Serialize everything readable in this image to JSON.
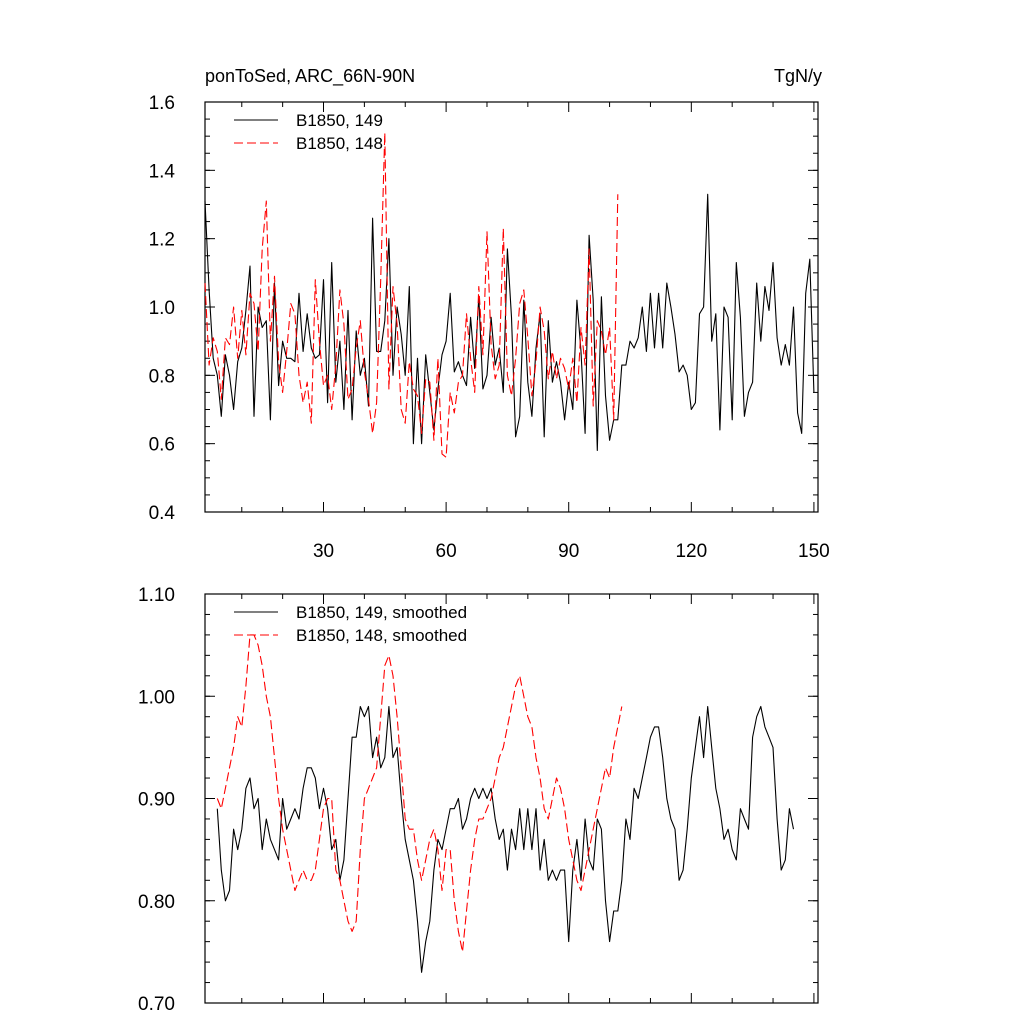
{
  "chart_data": [
    {
      "type": "line",
      "title_left": "ponToSed, ARC_66N-90N",
      "title_right": "TgN/y",
      "xlabel": "",
      "ylabel": "",
      "xlim": [
        1,
        151
      ],
      "ylim": [
        0.4,
        1.6
      ],
      "x_ticks": [
        30,
        60,
        90,
        120,
        150
      ],
      "y_ticks": [
        "0.4",
        "0.6",
        "0.8",
        "1.0",
        "1.2",
        "1.4",
        "1.6"
      ],
      "legend": "top-left",
      "grid": false,
      "series": [
        {
          "name": "B1850, 149",
          "color": "#000000",
          "dash": "solid",
          "x_start": 1,
          "values": [
            1.31,
            1.05,
            0.85,
            0.8,
            0.68,
            0.86,
            0.8,
            0.7,
            0.84,
            0.88,
            0.99,
            1.12,
            0.68,
            1.0,
            0.94,
            0.96,
            0.67,
            1.07,
            0.77,
            0.9,
            0.85,
            0.85,
            0.84,
            1.04,
            0.87,
            0.98,
            0.88,
            0.85,
            0.86,
            1.08,
            0.72,
            1.13,
            0.78,
            0.9,
            0.7,
            0.99,
            0.67,
            0.93,
            0.8,
            0.85,
            0.71,
            1.26,
            0.87,
            0.87,
            0.96,
            1.2,
            0.8,
            1.0,
            0.92,
            0.8,
            1.06,
            0.6,
            0.85,
            0.6,
            0.86,
            0.75,
            0.64,
            0.76,
            0.86,
            0.9,
            1.04,
            0.81,
            0.84,
            0.8,
            0.77,
            0.97,
            0.82,
            1.03,
            0.76,
            0.8,
            0.97,
            0.83,
            0.88,
            0.75,
            1.17,
            0.97,
            0.62,
            0.68,
            1.02,
            0.78,
            0.68,
            0.88,
            0.98,
            0.62,
            0.96,
            0.78,
            0.84,
            0.78,
            0.67,
            0.78,
            0.7,
            1.02,
            0.87,
            0.63,
            1.21,
            1.02,
            0.58,
            1.03,
            0.74,
            0.61,
            0.67,
            0.67,
            0.83,
            0.83,
            0.9,
            0.88,
            0.91,
            1.0,
            0.87,
            1.04,
            0.88,
            1.04,
            0.88,
            1.07,
            1.0,
            0.92,
            0.81,
            0.83,
            0.8,
            0.7,
            0.72,
            0.98,
            1.0,
            1.33,
            0.9,
            0.98,
            0.64,
            1.0,
            0.97,
            0.67,
            1.13,
            0.97,
            0.68,
            0.75,
            0.78,
            1.07,
            0.9,
            1.06,
            0.99,
            1.13,
            0.91,
            0.83,
            0.89,
            0.83,
            1.0,
            0.69,
            0.63,
            1.04,
            1.14,
            0.75
          ]
        },
        {
          "name": "B1850, 148",
          "color": "#ff0000",
          "dash": "dashed",
          "x_start": 1,
          "values": [
            1.07,
            0.83,
            0.91,
            0.87,
            0.73,
            0.91,
            0.89,
            1.0,
            0.85,
            0.99,
            0.86,
            1.04,
            1.01,
            0.87,
            1.17,
            1.31,
            0.9,
            1.09,
            0.84,
            0.75,
            0.87,
            1.01,
            0.98,
            0.8,
            0.72,
            0.78,
            0.66,
            1.08,
            0.9,
            0.77,
            0.8,
            0.7,
            0.83,
            1.05,
            0.95,
            0.73,
            0.76,
            0.88,
            0.96,
            0.81,
            0.73,
            0.63,
            0.72,
            1.08,
            1.51,
            0.76,
            1.06,
            0.95,
            0.7,
            0.66,
            0.84,
            0.76,
            0.74,
            0.63,
            0.79,
            0.78,
            0.61,
            0.85,
            0.57,
            0.56,
            0.75,
            0.69,
            0.78,
            0.8,
            0.98,
            0.85,
            0.75,
            1.06,
            0.86,
            1.22,
            0.89,
            0.79,
            0.83,
            1.23,
            0.8,
            0.74,
            0.85,
            1.01,
            1.05,
            0.91,
            0.74,
            0.84,
            1.0,
            0.93,
            0.79,
            0.87,
            0.79,
            0.85,
            0.82,
            0.76,
            0.85,
            0.72,
            0.94,
            0.83,
            1.17,
            0.71,
            0.96,
            0.93,
            0.86,
            0.94,
            0.67,
            1.33
          ]
        }
      ]
    },
    {
      "type": "line",
      "xlabel": "",
      "ylabel": "",
      "xlim": [
        1,
        151
      ],
      "ylim": [
        0.7,
        1.1
      ],
      "y_ticks": [
        "0.70",
        "0.80",
        "0.90",
        "1.00",
        "1.10"
      ],
      "legend": "top-left",
      "grid": false,
      "series": [
        {
          "name": "B1850, 149, smoothed",
          "color": "#000000",
          "dash": "solid",
          "x_start": 4,
          "values": [
            0.89,
            0.83,
            0.8,
            0.81,
            0.87,
            0.85,
            0.87,
            0.91,
            0.92,
            0.89,
            0.9,
            0.85,
            0.88,
            0.86,
            0.85,
            0.84,
            0.9,
            0.87,
            0.88,
            0.89,
            0.88,
            0.91,
            0.93,
            0.93,
            0.92,
            0.89,
            0.91,
            0.89,
            0.85,
            0.86,
            0.82,
            0.84,
            0.9,
            0.96,
            0.96,
            0.99,
            0.98,
            0.99,
            0.94,
            0.96,
            0.93,
            0.94,
            0.99,
            0.94,
            0.95,
            0.9,
            0.86,
            0.84,
            0.82,
            0.78,
            0.73,
            0.76,
            0.78,
            0.83,
            0.86,
            0.85,
            0.87,
            0.89,
            0.89,
            0.9,
            0.87,
            0.88,
            0.9,
            0.91,
            0.9,
            0.91,
            0.9,
            0.91,
            0.88,
            0.86,
            0.87,
            0.83,
            0.87,
            0.85,
            0.89,
            0.85,
            0.89,
            0.85,
            0.89,
            0.83,
            0.86,
            0.82,
            0.83,
            0.82,
            0.83,
            0.83,
            0.76,
            0.83,
            0.86,
            0.82,
            0.88,
            0.84,
            0.83,
            0.88,
            0.87,
            0.8,
            0.76,
            0.79,
            0.79,
            0.82,
            0.88,
            0.86,
            0.91,
            0.9,
            0.92,
            0.94,
            0.96,
            0.97,
            0.97,
            0.94,
            0.9,
            0.88,
            0.87,
            0.82,
            0.83,
            0.87,
            0.92,
            0.95,
            0.98,
            0.94,
            0.99,
            0.95,
            0.91,
            0.89,
            0.86,
            0.87,
            0.85,
            0.84,
            0.89,
            0.88,
            0.87,
            0.96,
            0.98,
            0.99,
            0.97,
            0.96,
            0.95,
            0.88,
            0.83,
            0.84,
            0.89,
            0.87
          ]
        },
        {
          "name": "B1850, 148, smoothed",
          "color": "#ff0000",
          "dash": "dashed",
          "x_start": 4,
          "values": [
            0.9,
            0.89,
            0.91,
            0.93,
            0.95,
            0.98,
            0.97,
            1.01,
            1.06,
            1.06,
            1.05,
            1.03,
            1.0,
            0.98,
            0.94,
            0.9,
            0.87,
            0.85,
            0.83,
            0.81,
            0.82,
            0.83,
            0.82,
            0.82,
            0.83,
            0.86,
            0.89,
            0.9,
            0.9,
            0.83,
            0.82,
            0.8,
            0.78,
            0.77,
            0.78,
            0.85,
            0.9,
            0.91,
            0.92,
            0.93,
            0.98,
            1.03,
            1.04,
            1.02,
            0.98,
            0.93,
            0.88,
            0.87,
            0.87,
            0.84,
            0.82,
            0.84,
            0.86,
            0.87,
            0.85,
            0.81,
            0.85,
            0.85,
            0.8,
            0.77,
            0.75,
            0.79,
            0.83,
            0.86,
            0.88,
            0.88,
            0.89,
            0.9,
            0.92,
            0.94,
            0.95,
            0.97,
            0.99,
            1.01,
            1.02,
            1.0,
            0.98,
            0.97,
            0.94,
            0.92,
            0.89,
            0.88,
            0.9,
            0.92,
            0.91,
            0.89,
            0.86,
            0.84,
            0.82,
            0.81,
            0.83,
            0.85,
            0.87,
            0.89,
            0.91,
            0.93,
            0.92,
            0.95,
            0.97,
            0.99
          ]
        }
      ]
    }
  ]
}
